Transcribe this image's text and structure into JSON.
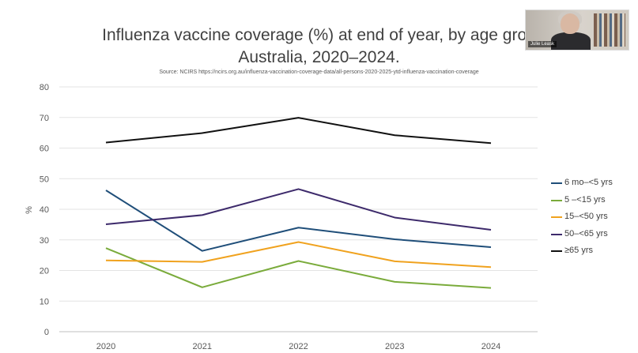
{
  "chart_data": {
    "type": "line",
    "title_line1": "Influenza vaccine coverage (%) at end of year, by age grou",
    "title_line2": "Australia, 2020–2024.",
    "source": "Source: NCIRS https://ncirs.org.au/influenza-vaccination-coverage-data/all-persons-2020-2025-ytd-influenza-vaccination-coverage",
    "ylabel": "%",
    "xlabel": "",
    "x": [
      "2020",
      "2021",
      "2022",
      "2023",
      "2024"
    ],
    "ylim": [
      0,
      80
    ],
    "yticks": [
      0,
      10,
      20,
      30,
      40,
      50,
      60,
      70,
      80
    ],
    "grid": true,
    "legend_position": "right",
    "series": [
      {
        "name": "6 mo–<5 yrs",
        "color": "#1f4e79",
        "values": [
          46.2,
          26.4,
          34.0,
          30.2,
          27.6
        ]
      },
      {
        "name": "5 –<15 yrs",
        "color": "#7aab3b",
        "values": [
          27.3,
          14.5,
          23.1,
          16.3,
          14.3
        ]
      },
      {
        "name": "15–<50 yrs",
        "color": "#f0a21e",
        "values": [
          23.3,
          22.8,
          29.3,
          23.0,
          21.1
        ]
      },
      {
        "name": "50–<65 yrs",
        "color": "#3d2a6b",
        "values": [
          35.1,
          38.1,
          46.6,
          37.3,
          33.3
        ]
      },
      {
        "name": "≥65 yrs",
        "color": "#111111",
        "values": [
          61.8,
          64.9,
          69.9,
          64.2,
          61.6
        ]
      }
    ]
  },
  "webcam": {
    "name_label": "Julie Leask"
  }
}
